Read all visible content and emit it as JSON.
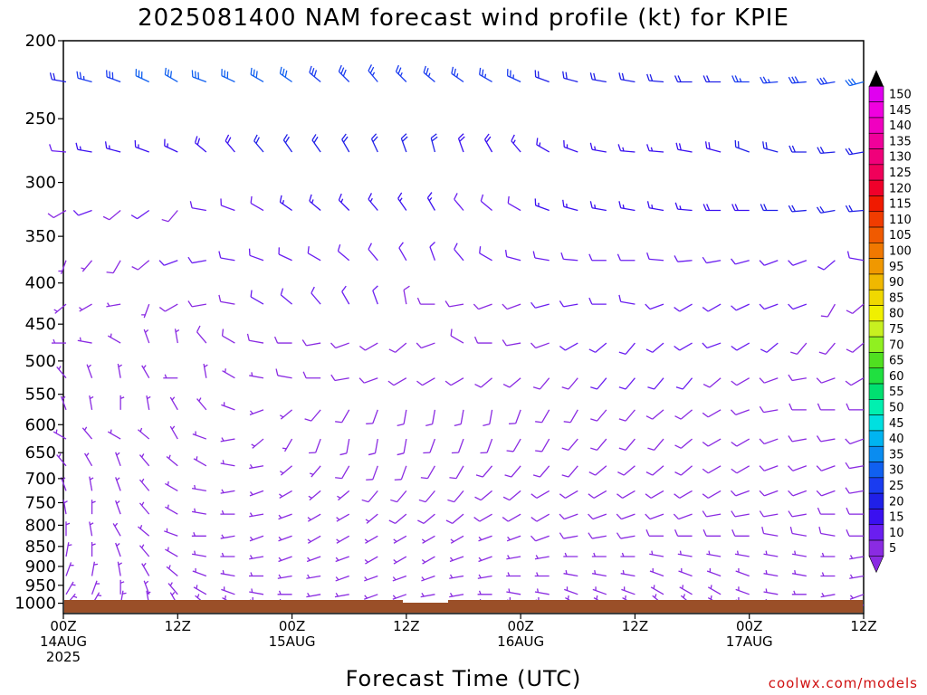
{
  "chart_data": {
    "type": "wind-barb-profile",
    "title": "2025081400 NAM forecast wind profile (kt) for KPIE",
    "xlabel": "Forecast Time (UTC)",
    "credit": "coolwx.com/models",
    "y_axis": {
      "scale": "log-pressure",
      "ylim": [
        1030,
        200
      ],
      "ticks": [
        200,
        250,
        300,
        350,
        400,
        450,
        500,
        550,
        600,
        650,
        700,
        750,
        800,
        850,
        900,
        950,
        1000
      ]
    },
    "x_axis": {
      "range_hours": [
        0,
        84
      ],
      "ticks": [
        {
          "hour": 0,
          "lines": [
            "00Z",
            "14AUG",
            "2025"
          ]
        },
        {
          "hour": 12,
          "lines": [
            "12Z"
          ]
        },
        {
          "hour": 24,
          "lines": [
            "00Z",
            "15AUG"
          ]
        },
        {
          "hour": 36,
          "lines": [
            "12Z"
          ]
        },
        {
          "hour": 48,
          "lines": [
            "00Z",
            "16AUG"
          ]
        },
        {
          "hour": 60,
          "lines": [
            "12Z"
          ]
        },
        {
          "hour": 72,
          "lines": [
            "00Z",
            "17AUG"
          ]
        },
        {
          "hour": 84,
          "lines": [
            "12Z"
          ]
        }
      ]
    },
    "time_step_hours": 3,
    "colorbar": {
      "levels": [
        5,
        10,
        15,
        20,
        25,
        30,
        35,
        40,
        45,
        50,
        55,
        60,
        65,
        70,
        75,
        80,
        85,
        90,
        95,
        100,
        105,
        110,
        115,
        120,
        125,
        130,
        135,
        140,
        145,
        150
      ],
      "colors": [
        "#8a2be2",
        "#6a1ef0",
        "#3a10f0",
        "#2020e8",
        "#1a3cf0",
        "#1060f0",
        "#0a8cf0",
        "#00b4f0",
        "#00e0e0",
        "#00f0b0",
        "#00e070",
        "#20e040",
        "#50e020",
        "#90f020",
        "#c8f020",
        "#f0f000",
        "#f0d800",
        "#f0b800",
        "#f09800",
        "#f07800",
        "#f05a00",
        "#f03c00",
        "#f01a00",
        "#f0002a",
        "#f0005a",
        "#f0007a",
        "#f0009a",
        "#f000c0",
        "#f000e0",
        "#e000f0"
      ]
    },
    "wind_levels": [
      {
        "p": 225,
        "dir": [
          280,
          285,
          290,
          295,
          300,
          290,
          295,
          300,
          305,
          310,
          315,
          320,
          315,
          310,
          305,
          300,
          295,
          290,
          285,
          280,
          280,
          275,
          270,
          270,
          270,
          265,
          265,
          260,
          255,
          250
        ],
        "spd": [
          22,
          25,
          28,
          30,
          30,
          30,
          32,
          30,
          30,
          28,
          28,
          25,
          25,
          25,
          25,
          25,
          25,
          22,
          22,
          22,
          22,
          22,
          22,
          22,
          25,
          25,
          28,
          28,
          30,
          30
        ]
      },
      {
        "p": 275,
        "dir": [
          275,
          280,
          285,
          290,
          295,
          310,
          320,
          320,
          325,
          325,
          330,
          335,
          340,
          345,
          340,
          330,
          320,
          300,
          290,
          280,
          275,
          275,
          280,
          285,
          290,
          285,
          270,
          265,
          260,
          255
        ],
        "spd": [
          12,
          15,
          15,
          15,
          15,
          18,
          18,
          20,
          20,
          20,
          20,
          20,
          20,
          20,
          18,
          18,
          15,
          15,
          15,
          15,
          15,
          15,
          18,
          18,
          20,
          20,
          20,
          22,
          22,
          25
        ]
      },
      {
        "p": 325,
        "dir": [
          240,
          250,
          230,
          235,
          220,
          280,
          290,
          300,
          305,
          310,
          315,
          320,
          325,
          330,
          320,
          310,
          300,
          290,
          285,
          280,
          280,
          280,
          275,
          270,
          270,
          270,
          265,
          260,
          265,
          270
        ],
        "spd": [
          8,
          10,
          8,
          10,
          8,
          10,
          12,
          12,
          15,
          15,
          15,
          15,
          15,
          15,
          12,
          12,
          12,
          15,
          15,
          15,
          15,
          15,
          15,
          18,
          18,
          20,
          20,
          22,
          22,
          20
        ]
      },
      {
        "p": 375,
        "dir": [
          200,
          220,
          210,
          230,
          250,
          260,
          280,
          290,
          295,
          300,
          310,
          320,
          330,
          340,
          320,
          300,
          285,
          280,
          275,
          270,
          270,
          275,
          265,
          260,
          255,
          250,
          250,
          230,
          280,
          290
        ],
        "spd": [
          5,
          5,
          8,
          8,
          10,
          10,
          10,
          12,
          12,
          12,
          12,
          12,
          12,
          10,
          10,
          10,
          10,
          10,
          12,
          12,
          12,
          12,
          12,
          12,
          12,
          12,
          12,
          10,
          10,
          12
        ]
      },
      {
        "p": 425,
        "dir": [
          230,
          240,
          260,
          200,
          240,
          260,
          280,
          300,
          310,
          320,
          330,
          340,
          350,
          270,
          260,
          250,
          250,
          255,
          260,
          270,
          280,
          250,
          240,
          240,
          245,
          250,
          250,
          210,
          230,
          260
        ],
        "spd": [
          5,
          5,
          5,
          5,
          8,
          8,
          8,
          10,
          10,
          10,
          10,
          10,
          8,
          8,
          8,
          8,
          8,
          10,
          10,
          10,
          10,
          10,
          10,
          10,
          10,
          10,
          10,
          8,
          8,
          8
        ]
      },
      {
        "p": 475,
        "dir": [
          270,
          280,
          300,
          340,
          350,
          320,
          300,
          280,
          270,
          260,
          250,
          240,
          230,
          250,
          300,
          270,
          260,
          250,
          240,
          230,
          220,
          230,
          240,
          250,
          240,
          230,
          220,
          220,
          230,
          240
        ],
        "spd": [
          5,
          5,
          5,
          5,
          5,
          8,
          8,
          8,
          8,
          8,
          8,
          8,
          8,
          8,
          8,
          8,
          8,
          8,
          10,
          10,
          10,
          10,
          10,
          10,
          10,
          10,
          8,
          8,
          8,
          8
        ]
      },
      {
        "p": 525,
        "dir": [
          320,
          340,
          350,
          330,
          270,
          350,
          300,
          280,
          280,
          270,
          260,
          250,
          240,
          240,
          240,
          230,
          230,
          220,
          220,
          220,
          220,
          220,
          220,
          230,
          240,
          250,
          260,
          250,
          240,
          220
        ],
        "spd": [
          5,
          5,
          5,
          5,
          5,
          5,
          5,
          5,
          8,
          8,
          8,
          8,
          8,
          8,
          8,
          8,
          8,
          8,
          8,
          10,
          10,
          10,
          10,
          8,
          8,
          8,
          8,
          8,
          8,
          8
        ]
      },
      {
        "p": 575,
        "dir": [
          340,
          350,
          0,
          350,
          330,
          320,
          290,
          250,
          230,
          220,
          210,
          200,
          190,
          190,
          190,
          190,
          200,
          210,
          210,
          220,
          220,
          230,
          230,
          240,
          250,
          260,
          270,
          270,
          270,
          260
        ],
        "spd": [
          5,
          5,
          5,
          5,
          5,
          5,
          5,
          5,
          5,
          8,
          8,
          8,
          8,
          8,
          8,
          8,
          8,
          8,
          8,
          8,
          8,
          8,
          8,
          8,
          8,
          8,
          8,
          8,
          8,
          8
        ]
      },
      {
        "p": 625,
        "dir": [
          300,
          320,
          300,
          310,
          330,
          290,
          260,
          230,
          210,
          200,
          190,
          190,
          190,
          200,
          200,
          200,
          210,
          210,
          220,
          220,
          220,
          220,
          230,
          240,
          240,
          250,
          260,
          260,
          250,
          250
        ],
        "spd": [
          5,
          5,
          5,
          5,
          5,
          5,
          5,
          5,
          5,
          8,
          8,
          8,
          8,
          8,
          8,
          8,
          8,
          8,
          8,
          8,
          8,
          8,
          8,
          8,
          8,
          8,
          8,
          8,
          8,
          8
        ]
      },
      {
        "p": 675,
        "dir": [
          320,
          330,
          340,
          320,
          310,
          300,
          280,
          260,
          230,
          220,
          210,
          200,
          200,
          210,
          210,
          220,
          220,
          220,
          220,
          230,
          230,
          230,
          230,
          240,
          240,
          250,
          250,
          250,
          260,
          260
        ],
        "spd": [
          5,
          5,
          5,
          5,
          5,
          5,
          5,
          5,
          5,
          5,
          8,
          8,
          8,
          8,
          8,
          8,
          8,
          8,
          8,
          8,
          8,
          8,
          8,
          8,
          8,
          8,
          8,
          8,
          8,
          8
        ]
      },
      {
        "p": 725,
        "dir": [
          340,
          350,
          340,
          320,
          300,
          280,
          260,
          250,
          240,
          230,
          230,
          220,
          220,
          220,
          220,
          230,
          230,
          240,
          240,
          240,
          240,
          240,
          240,
          240,
          250,
          250,
          250,
          250,
          260,
          260
        ],
        "spd": [
          5,
          5,
          5,
          5,
          5,
          5,
          5,
          5,
          5,
          5,
          5,
          8,
          8,
          8,
          8,
          8,
          8,
          8,
          8,
          8,
          8,
          8,
          8,
          8,
          8,
          8,
          8,
          8,
          8,
          8
        ]
      },
      {
        "p": 775,
        "dir": [
          350,
          0,
          340,
          320,
          300,
          280,
          270,
          260,
          250,
          240,
          240,
          230,
          230,
          230,
          230,
          240,
          240,
          240,
          250,
          250,
          250,
          250,
          250,
          260,
          260,
          260,
          260,
          270,
          270,
          270
        ],
        "spd": [
          5,
          5,
          5,
          5,
          5,
          5,
          5,
          5,
          5,
          5,
          5,
          5,
          8,
          8,
          8,
          8,
          8,
          8,
          8,
          8,
          8,
          8,
          8,
          8,
          8,
          8,
          8,
          8,
          8,
          8
        ]
      },
      {
        "p": 825,
        "dir": [
          0,
          350,
          330,
          310,
          290,
          270,
          260,
          250,
          250,
          240,
          240,
          240,
          240,
          240,
          240,
          250,
          250,
          250,
          260,
          260,
          260,
          270,
          270,
          270,
          270,
          280,
          280,
          280,
          270,
          260
        ],
        "spd": [
          5,
          5,
          5,
          5,
          5,
          5,
          5,
          5,
          5,
          5,
          5,
          5,
          5,
          5,
          5,
          5,
          5,
          8,
          8,
          8,
          8,
          8,
          8,
          8,
          8,
          8,
          8,
          8,
          8,
          8
        ]
      },
      {
        "p": 875,
        "dir": [
          10,
          0,
          340,
          320,
          300,
          280,
          270,
          260,
          250,
          250,
          250,
          240,
          240,
          240,
          250,
          250,
          260,
          260,
          270,
          270,
          270,
          280,
          280,
          280,
          280,
          280,
          280,
          270,
          260,
          250
        ],
        "spd": [
          5,
          5,
          5,
          5,
          5,
          5,
          5,
          5,
          5,
          5,
          5,
          5,
          5,
          5,
          5,
          5,
          5,
          5,
          5,
          5,
          5,
          5,
          5,
          5,
          5,
          5,
          5,
          5,
          5,
          5
        ]
      },
      {
        "p": 925,
        "dir": [
          20,
          10,
          350,
          330,
          310,
          290,
          280,
          270,
          260,
          260,
          250,
          250,
          250,
          250,
          260,
          260,
          270,
          270,
          280,
          280,
          280,
          290,
          290,
          290,
          290,
          280,
          280,
          270,
          260,
          250
        ],
        "spd": [
          5,
          5,
          5,
          5,
          5,
          5,
          5,
          5,
          5,
          5,
          5,
          5,
          5,
          5,
          5,
          5,
          5,
          5,
          5,
          5,
          5,
          5,
          5,
          5,
          5,
          5,
          5,
          5,
          5,
          5
        ]
      },
      {
        "p": 975,
        "dir": [
          30,
          20,
          0,
          340,
          320,
          300,
          290,
          280,
          270,
          260,
          260,
          250,
          250,
          260,
          260,
          270,
          280,
          280,
          290,
          290,
          290,
          300,
          300,
          300,
          290,
          280,
          270,
          260,
          250,
          240
        ],
        "spd": [
          5,
          5,
          5,
          5,
          5,
          5,
          5,
          5,
          5,
          5,
          5,
          5,
          5,
          5,
          5,
          5,
          5,
          5,
          5,
          5,
          5,
          5,
          5,
          5,
          5,
          5,
          5,
          5,
          5,
          5
        ]
      },
      {
        "p": 1005,
        "dir": [
          40,
          30,
          10,
          350,
          330,
          310,
          300,
          290,
          280,
          270,
          270,
          260,
          260,
          270,
          270,
          280,
          290,
          290,
          300,
          300,
          300,
          310,
          310,
          300,
          290,
          280,
          270,
          260,
          250,
          240
        ],
        "spd": [
          5,
          5,
          5,
          5,
          5,
          5,
          5,
          5,
          5,
          5,
          5,
          5,
          5,
          5,
          5,
          5,
          5,
          5,
          5,
          5,
          5,
          5,
          5,
          5,
          5,
          5,
          5,
          5,
          5,
          5
        ]
      }
    ]
  }
}
